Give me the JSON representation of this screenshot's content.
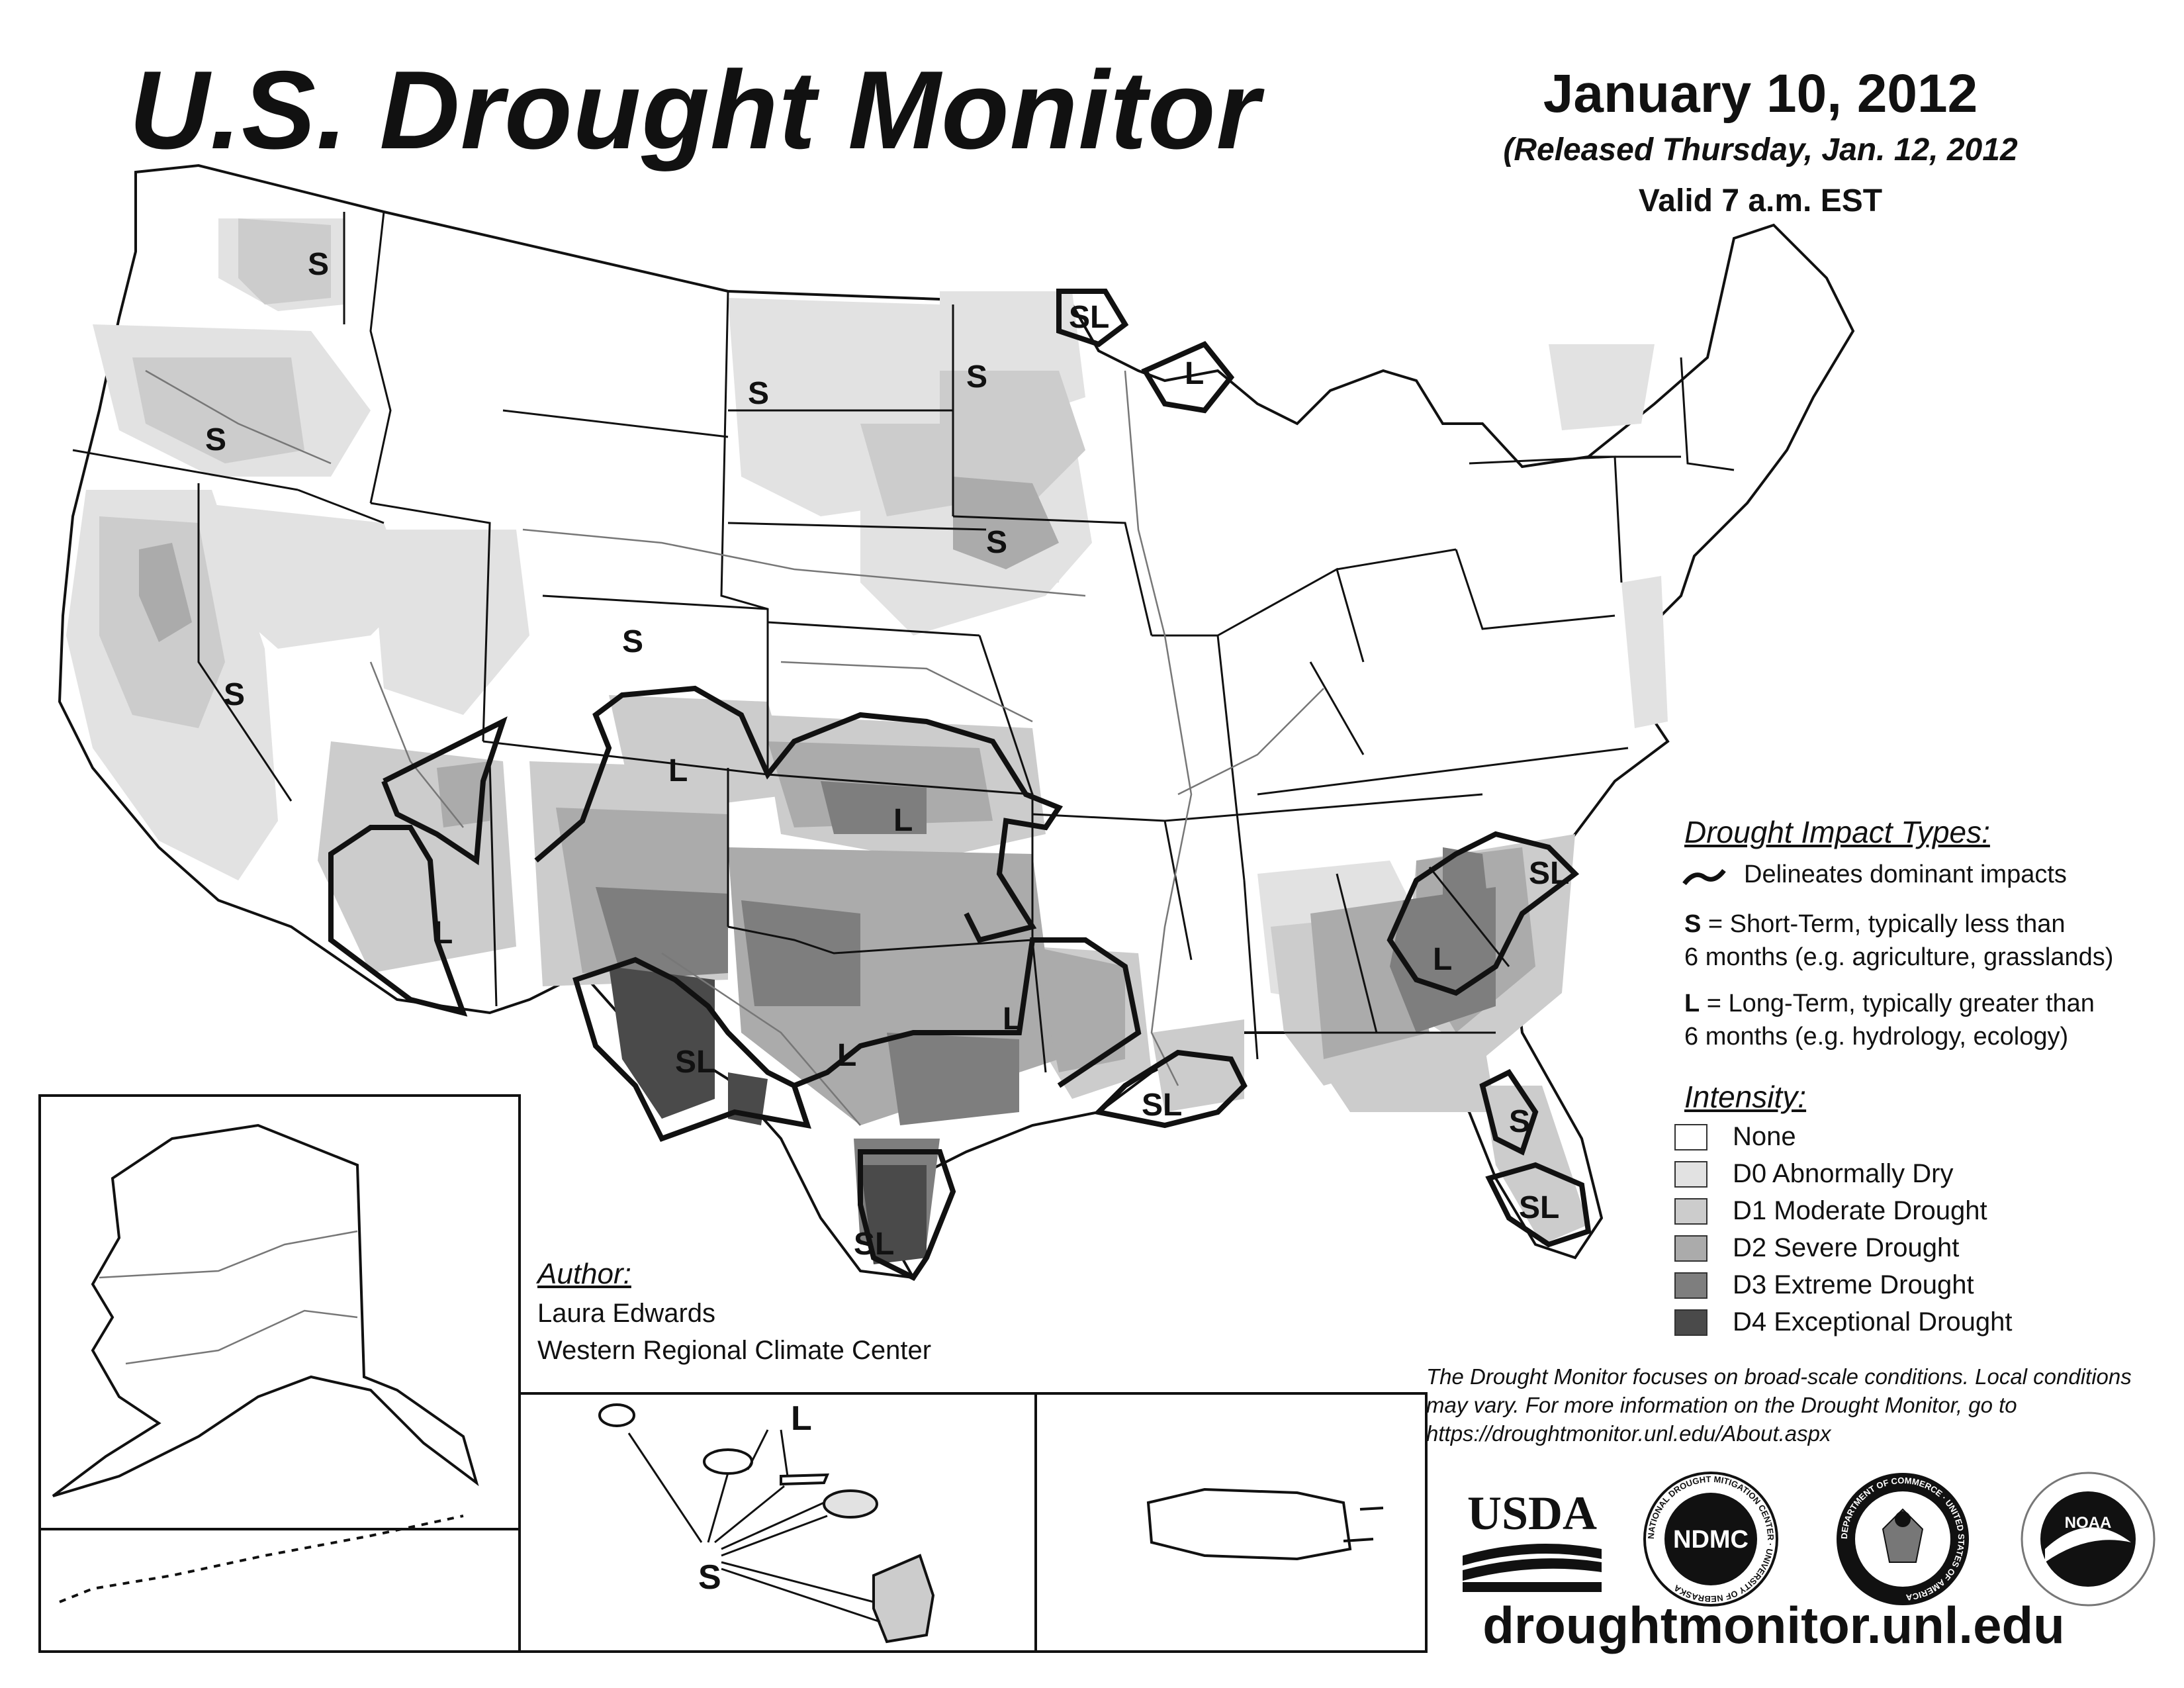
{
  "header": {
    "title": "U.S. Drought Monitor",
    "map_date": "January 10, 2012",
    "released": "(Released Thursday, Jan. 12, 2012",
    "valid_time": "Valid 7 a.m. EST"
  },
  "legend": {
    "impact_title": "Drought Impact Types:",
    "impact_line": "Delineates dominant impacts",
    "short_term_letter": "S",
    "short_term_line1": " = Short-Term, typically less than",
    "short_term_line2": "6 months (e.g. agriculture, grasslands)",
    "long_term_letter": "L",
    "long_term_line1": " = Long-Term, typically greater than",
    "long_term_line2": "6 months (e.g. hydrology, ecology)",
    "intensity_title": "Intensity:",
    "intensity_levels": [
      {
        "label": "None",
        "color": "#ffffff"
      },
      {
        "label": "D0 Abnormally Dry",
        "color": "#e2e2e2"
      },
      {
        "label": "D1 Moderate Drought",
        "color": "#cccccc"
      },
      {
        "label": "D2 Severe Drought",
        "color": "#ababab"
      },
      {
        "label": "D3 Extreme Drought",
        "color": "#7e7e7e"
      },
      {
        "label": "D4 Exceptional Drought",
        "color": "#4a4a4a"
      }
    ]
  },
  "author": {
    "label": "Author:",
    "name": "Laura Edwards",
    "organization": "Western Regional Climate Center"
  },
  "disclaimer": "The Drought Monitor focuses on broad-scale conditions. Local conditions may vary. For more information on the Drought Monitor, go to https://droughtmonitor.unl.edu/About.aspx",
  "website": "droughtmonitor.unl.edu",
  "map_labels": {
    "s": "S",
    "l": "L",
    "sl": "SL"
  },
  "logos": {
    "usda": "USDA",
    "ndmc": "NDMC",
    "ndmc_ring": "NATIONAL DROUGHT MITIGATION CENTER · UNIVERSITY OF NEBRASKA",
    "commerce_ring": "DEPARTMENT OF COMMERCE · UNITED STATES OF AMERICA",
    "noaa": "NOAA"
  }
}
